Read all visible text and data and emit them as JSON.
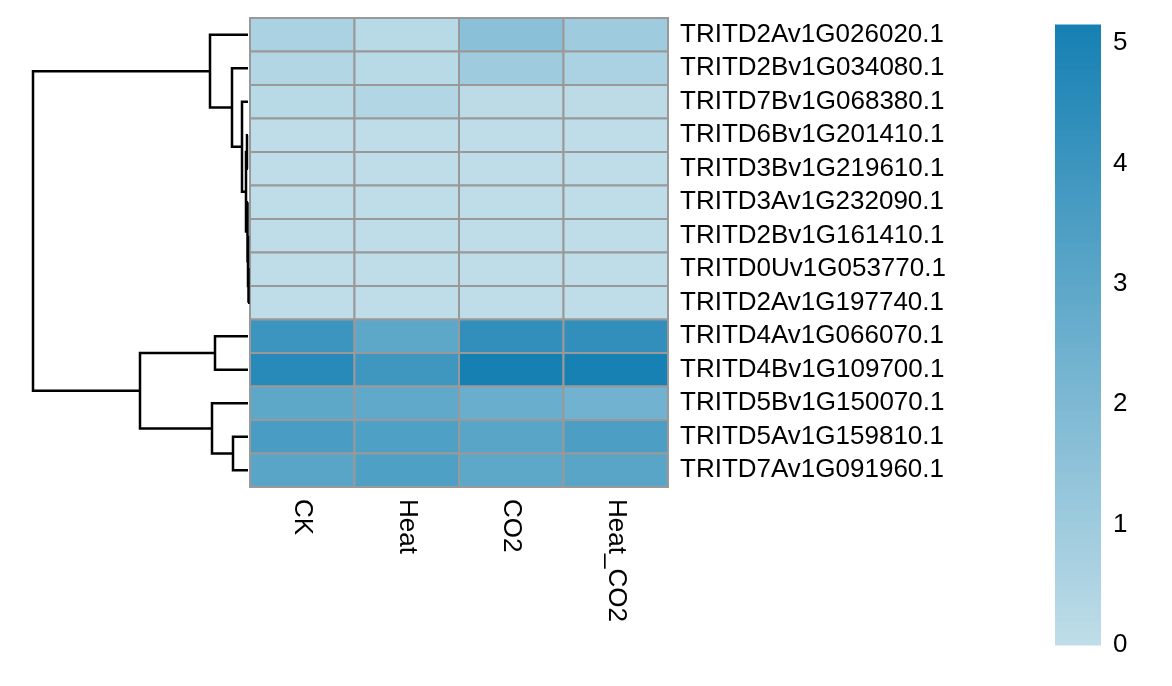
{
  "chart_data": {
    "type": "heatmap",
    "categories": [
      "CK",
      "Heat",
      "CO2",
      "Heat_CO2"
    ],
    "y_categories": [
      "TRITD2Av1G026020.1",
      "TRITD2Bv1G034080.1",
      "TRITD7Bv1G068380.1",
      "TRITD6Bv1G201410.1",
      "TRITD3Bv1G219610.1",
      "TRITD3Av1G232090.1",
      "TRITD2Bv1G161410.1",
      "TRITD0Uv1G053770.1",
      "TRITD2Av1G197740.1",
      "TRITD4Av1G066070.1",
      "TRITD4Bv1G109700.1",
      "TRITD5Bv1G150070.1",
      "TRITD5Av1G159810.1",
      "TRITD7Av1G091960.1"
    ],
    "cells": [
      [
        0.6,
        0.2,
        1.6,
        1.0
      ],
      [
        0.4,
        0.2,
        1.0,
        0.6
      ],
      [
        0.2,
        0.4,
        0.1,
        0.1
      ],
      [
        0,
        0,
        0,
        0
      ],
      [
        0,
        0,
        0,
        0
      ],
      [
        0,
        0,
        0,
        0
      ],
      [
        0,
        0,
        0,
        0
      ],
      [
        0,
        0,
        0,
        0
      ],
      [
        0,
        0,
        0,
        0
      ],
      [
        4.0,
        3.0,
        4.3,
        4.3
      ],
      [
        4.6,
        3.9,
        5.15,
        5.1
      ],
      [
        3.0,
        2.9,
        2.6,
        2.4
      ],
      [
        3.6,
        3.4,
        3.1,
        3.5
      ],
      [
        3.1,
        3.4,
        3.0,
        3.1
      ]
    ],
    "clim": [
      0,
      5.15
    ],
    "cticks": [
      0,
      1,
      2,
      3,
      4,
      5
    ]
  }
}
